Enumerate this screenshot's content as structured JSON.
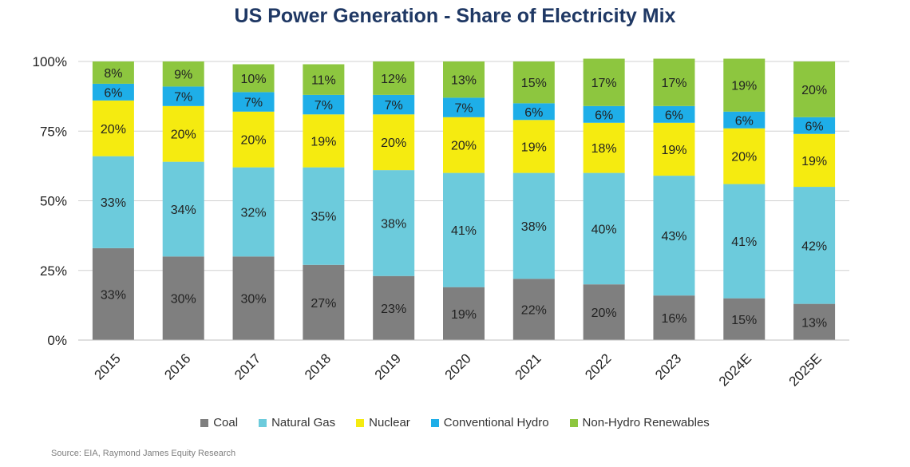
{
  "chart_data": {
    "type": "bar",
    "stacked": true,
    "title": "US Power Generation - Share of Electricity Mix",
    "categories": [
      "2015",
      "2016",
      "2017",
      "2018",
      "2019",
      "2020",
      "2021",
      "2022",
      "2023",
      "2024E",
      "2025E"
    ],
    "ylim": [
      0,
      100
    ],
    "yticks": [
      "0%",
      "25%",
      "50%",
      "75%",
      "100%"
    ],
    "grid": true,
    "legend_position": "bottom",
    "series": [
      {
        "name": "Coal",
        "color": "#7f7f7f",
        "values": [
          33,
          30,
          30,
          27,
          23,
          19,
          22,
          20,
          16,
          15,
          13
        ],
        "labels": [
          "33%",
          "30%",
          "30%",
          "27%",
          "23%",
          "19%",
          "22%",
          "20%",
          "16%",
          "15%",
          "13%"
        ]
      },
      {
        "name": "Natural Gas",
        "color": "#6ccbdc",
        "values": [
          33,
          34,
          32,
          35,
          38,
          41,
          38,
          40,
          43,
          41,
          42
        ],
        "labels": [
          "33%",
          "34%",
          "32%",
          "35%",
          "38%",
          "41%",
          "38%",
          "40%",
          "43%",
          "41%",
          "42%"
        ]
      },
      {
        "name": "Nuclear",
        "color": "#f5eb10",
        "values": [
          20,
          20,
          20,
          19,
          20,
          20,
          19,
          18,
          19,
          20,
          19
        ],
        "labels": [
          "20%",
          "20%",
          "20%",
          "19%",
          "20%",
          "20%",
          "19%",
          "18%",
          "19%",
          "20%",
          "19%"
        ]
      },
      {
        "name": "Conventional Hydro",
        "color": "#1eaee8",
        "values": [
          6,
          7,
          7,
          7,
          7,
          7,
          6,
          6,
          6,
          6,
          6
        ],
        "labels": [
          "6%",
          "7%",
          "7%",
          "7%",
          "7%",
          "7%",
          "6%",
          "6%",
          "6%",
          "6%",
          "6%"
        ]
      },
      {
        "name": "Non-Hydro Renewables",
        "color": "#8dc63f",
        "values": [
          8,
          9,
          10,
          11,
          12,
          13,
          15,
          17,
          17,
          19,
          20
        ],
        "labels": [
          "8%",
          "9%",
          "10%",
          "11%",
          "12%",
          "13%",
          "15%",
          "17%",
          "17%",
          "19%",
          "20%"
        ]
      }
    ]
  },
  "source": "Source: EIA, Raymond James Equity Research"
}
